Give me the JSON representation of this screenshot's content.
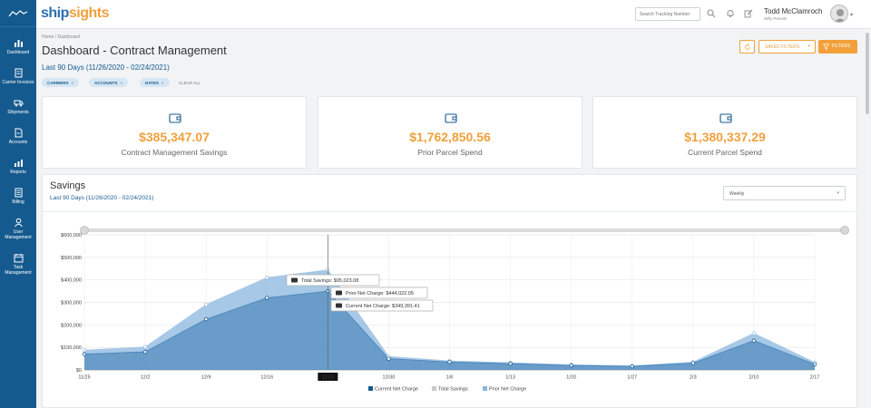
{
  "brand": {
    "part1": "ship",
    "part2": "sights"
  },
  "search": {
    "placeholder": "Search Tracking Number"
  },
  "user": {
    "name": "Todd McClamroch",
    "org": "Nifty Parcels"
  },
  "sidebar": {
    "items": [
      {
        "label": "Dashboard",
        "icon": "bar-chart-icon"
      },
      {
        "label": "Carrier Invoices",
        "icon": "invoice-icon"
      },
      {
        "label": "Shipments",
        "icon": "truck-icon"
      },
      {
        "label": "Accounts",
        "icon": "document-icon"
      },
      {
        "label": "Reports",
        "icon": "report-icon"
      },
      {
        "label": "Billing",
        "icon": "billing-icon"
      },
      {
        "label": "User Management",
        "icon": "user-icon"
      },
      {
        "label": "Task Management",
        "icon": "calendar-icon"
      }
    ]
  },
  "page": {
    "breadcrumb": "Home / Dashboard",
    "title": "Dashboard - Contract Management",
    "date_range": "Last 90 Days (11/26/2020 - 02/24/2021)"
  },
  "filters": {
    "chips": [
      "CARRIERS",
      "ACCOUNTS",
      "DATES"
    ],
    "clear_all": "CLEAR ALL",
    "saved_filters": "SAVED FILTERS",
    "filters": "FILTERS"
  },
  "kpis": [
    {
      "value": "$385,347.07",
      "label": "Contract Management Savings"
    },
    {
      "value": "$1,762,850.56",
      "label": "Prior Parcel Spend"
    },
    {
      "value": "$1,380,337.29",
      "label": "Current Parcel Spend"
    }
  ],
  "savings": {
    "title": "Savings",
    "subtitle": "Last 90 Days (11/26/2020 - 02/24/2021)",
    "interval": "Weekly"
  },
  "colors": {
    "current": "#155a8f",
    "total": "#c9c9c9",
    "prior": "#8ab6de",
    "accent": "#f0a03c"
  },
  "chart_data": {
    "type": "area",
    "categories": [
      "11/25",
      "12/2",
      "12/9",
      "12/16",
      "12/23",
      "12/30",
      "1/6",
      "1/13",
      "1/20",
      "1/27",
      "2/3",
      "2/10",
      "2/17"
    ],
    "selected_category": "12/23",
    "y_ticks": [
      "$0",
      "$100,000",
      "$200,000",
      "$300,000",
      "$400,000",
      "$500,000",
      "$600,000"
    ],
    "ylim": [
      0,
      600000
    ],
    "series": [
      {
        "name": "Current Net Charge",
        "values": [
          70000,
          80000,
          225000,
          320000,
          349391.41,
          50000,
          35000,
          28000,
          20000,
          16000,
          30000,
          130000,
          25000
        ]
      },
      {
        "name": "Total Savings",
        "values": [
          18000,
          22000,
          65000,
          90000,
          95023.08,
          10000,
          5000,
          4000,
          3000,
          2000,
          5000,
          33000,
          8000
        ]
      },
      {
        "name": "Prior Net Charge",
        "values": [
          88000,
          102000,
          290000,
          410000,
          444022.05,
          60000,
          40000,
          32000,
          23000,
          18000,
          35000,
          163000,
          33000
        ]
      }
    ],
    "tooltip": {
      "total": "Total Savings: $95,023.08",
      "prior": "Prior Net Charge: $444,022.05",
      "current": "Current Net Charge: $349,391.41"
    },
    "legend": [
      "Current Net Charge",
      "Total Savings",
      "Prior Net Charge"
    ]
  }
}
